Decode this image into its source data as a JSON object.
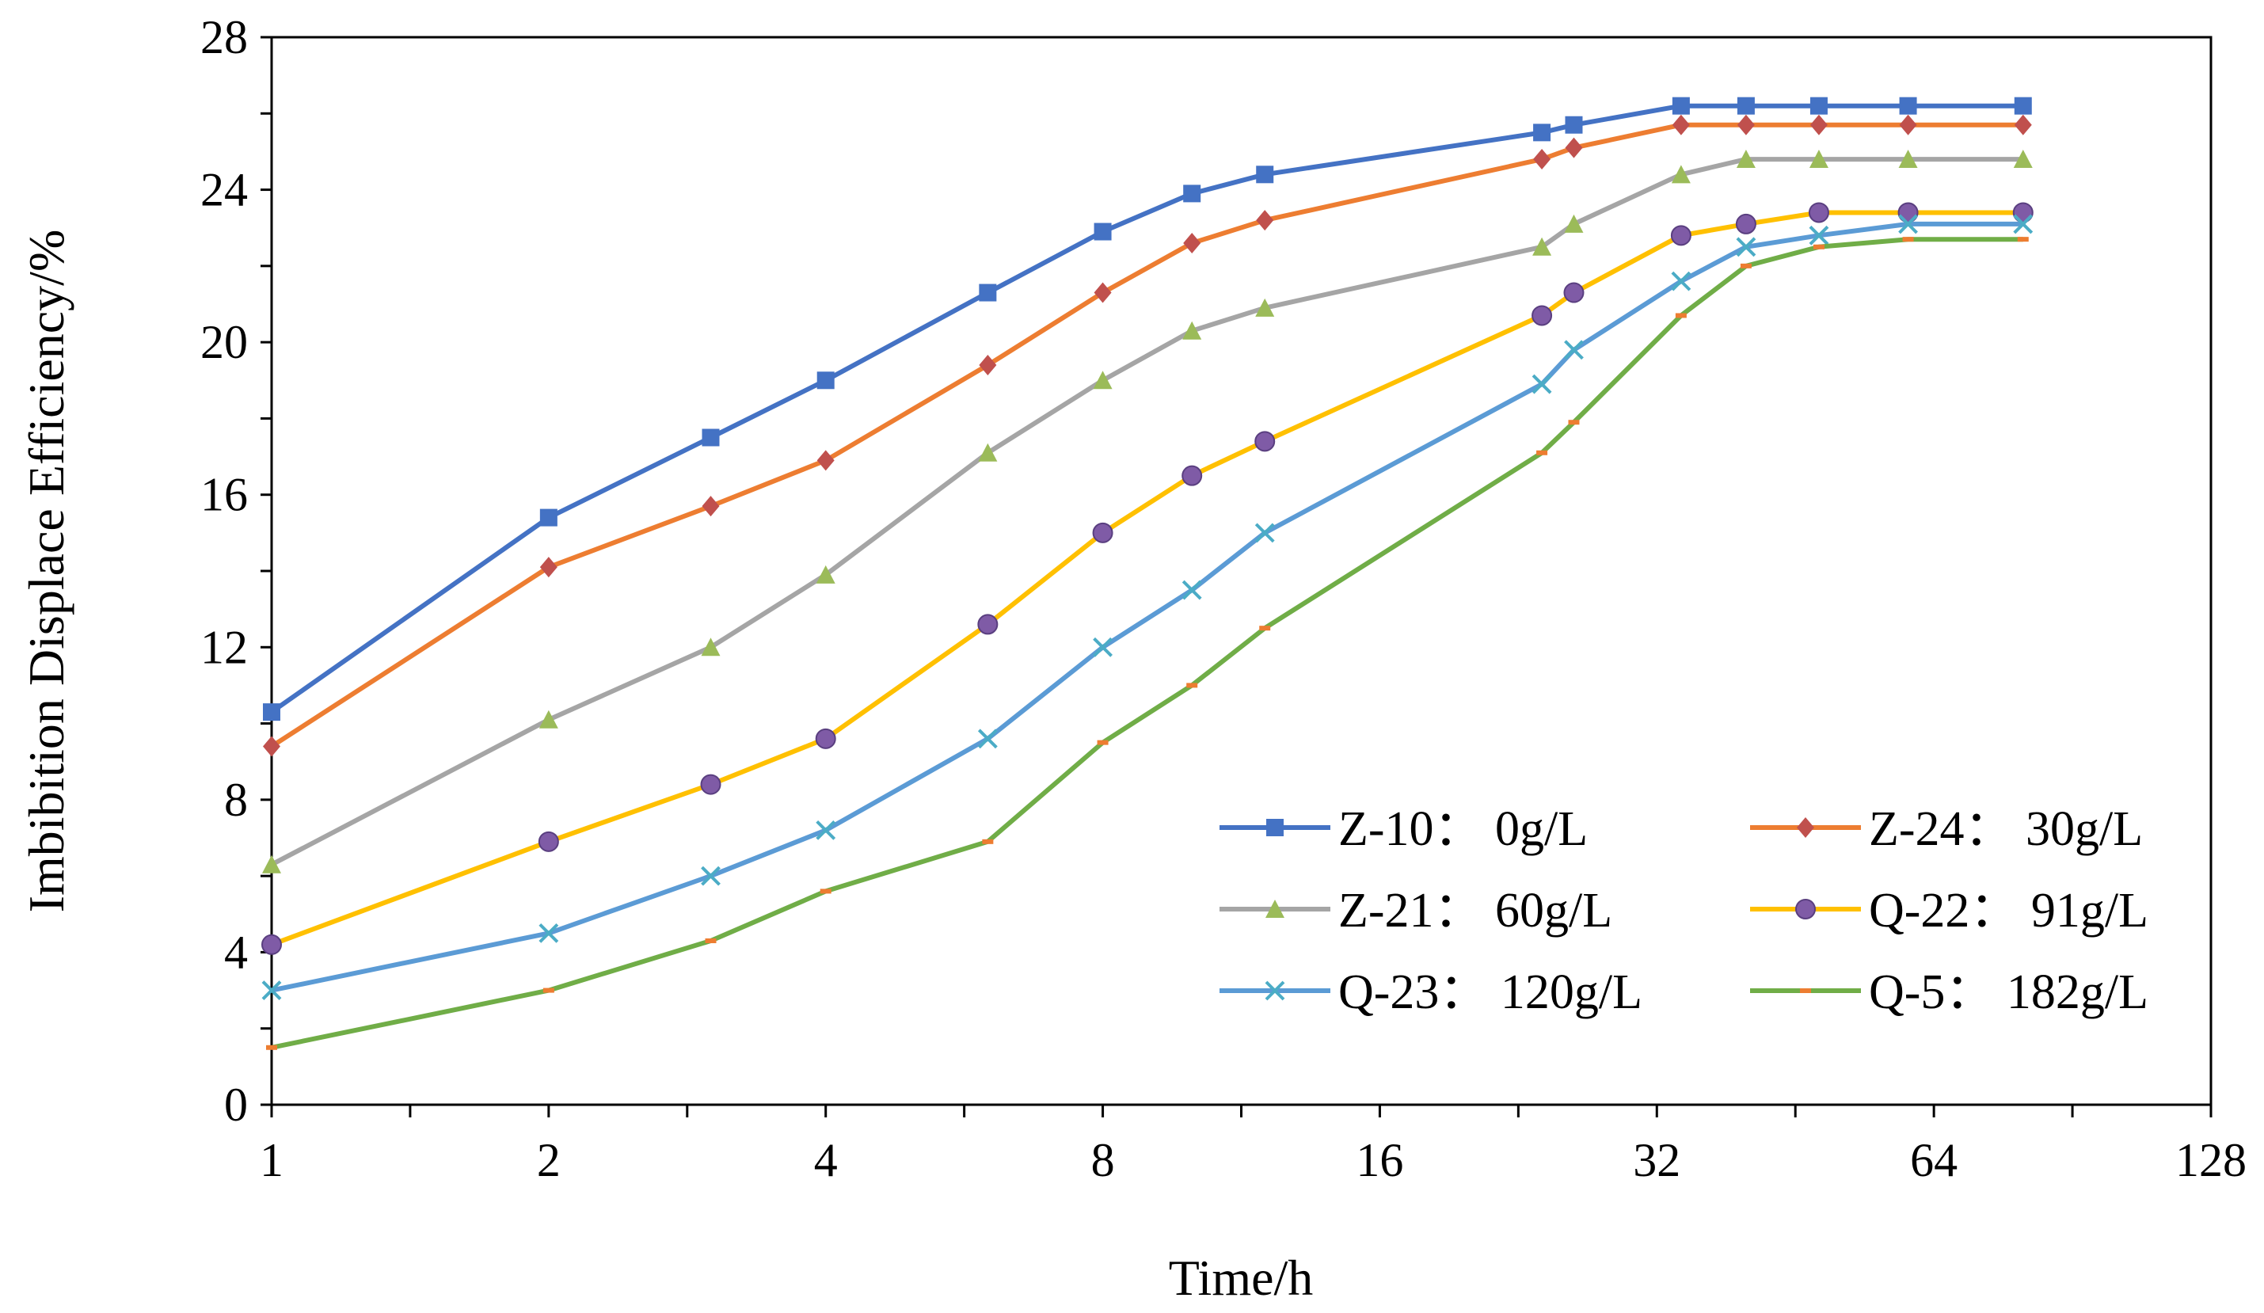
{
  "chart_data": {
    "type": "line",
    "xscale": "log2",
    "xlabel": "Time/h",
    "ylabel": "Imbibition Displace Efficiency/%",
    "xlim": [
      1,
      128
    ],
    "ylim": [
      0,
      28
    ],
    "xticks": [
      "1",
      "2",
      "4",
      "8",
      "16",
      "32",
      "64",
      "128"
    ],
    "xtick_values": [
      1,
      2,
      4,
      8,
      16,
      32,
      64,
      128
    ],
    "yticks": [
      "0",
      "4",
      "8",
      "12",
      "16",
      "20",
      "24",
      "28"
    ],
    "ytick_values": [
      0,
      4,
      8,
      12,
      16,
      20,
      24,
      28
    ],
    "grid": false,
    "legend_position": "lower-right",
    "series": [
      {
        "name": "Z-10： 0g/L",
        "color": "#4472C4",
        "marker": "square",
        "x": [
          1,
          2,
          3,
          4,
          6,
          8,
          10,
          12,
          24,
          26,
          34,
          40,
          48,
          60,
          80
        ],
        "y": [
          10.3,
          15.4,
          17.5,
          19.0,
          21.3,
          22.9,
          23.9,
          24.4,
          25.5,
          25.7,
          26.2,
          26.2,
          26.2,
          26.2,
          26.2
        ]
      },
      {
        "name": "Z-24： 30g/L",
        "color": "#ED7D31",
        "marker": "diamond",
        "x": [
          1,
          2,
          3,
          4,
          6,
          8,
          10,
          12,
          24,
          26,
          34,
          40,
          48,
          60,
          80
        ],
        "y": [
          9.4,
          14.1,
          15.7,
          16.9,
          19.4,
          21.3,
          22.6,
          23.2,
          24.8,
          25.1,
          25.7,
          25.7,
          25.7,
          25.7,
          25.7
        ]
      },
      {
        "name": "Z-21： 60g/L",
        "color": "#A5A5A5",
        "marker": "triangle",
        "x": [
          1,
          2,
          3,
          4,
          6,
          8,
          10,
          12,
          24,
          26,
          34,
          40,
          48,
          60,
          80
        ],
        "y": [
          6.3,
          10.1,
          12.0,
          13.9,
          17.1,
          19.0,
          20.3,
          20.9,
          22.5,
          23.1,
          24.4,
          24.8,
          24.8,
          24.8,
          24.8
        ]
      },
      {
        "name": "Q-22： 91g/L",
        "color": "#FFC000",
        "marker": "circle",
        "x": [
          1,
          2,
          3,
          4,
          6,
          8,
          10,
          12,
          24,
          26,
          34,
          40,
          48,
          60,
          80
        ],
        "y": [
          4.2,
          6.9,
          8.4,
          9.6,
          12.6,
          15.0,
          16.5,
          17.4,
          20.7,
          21.3,
          22.8,
          23.1,
          23.4,
          23.4,
          23.4
        ]
      },
      {
        "name": "Q-23： 120g/L",
        "color": "#5B9BD5",
        "marker": "x",
        "x": [
          1,
          2,
          3,
          4,
          6,
          8,
          10,
          12,
          24,
          26,
          34,
          40,
          48,
          60,
          80
        ],
        "y": [
          3.0,
          4.5,
          6.0,
          7.2,
          9.6,
          12.0,
          13.5,
          15.0,
          18.9,
          19.8,
          21.6,
          22.5,
          22.8,
          23.1,
          23.1
        ]
      },
      {
        "name": "Q-5： 182g/L",
        "color": "#70AD47",
        "marker": "dash",
        "marker_color": "#ED7D31",
        "x": [
          1,
          2,
          3,
          4,
          6,
          8,
          10,
          12,
          24,
          26,
          34,
          40,
          48,
          60,
          80
        ],
        "y": [
          1.5,
          3.0,
          4.3,
          5.6,
          6.9,
          9.5,
          11.0,
          12.5,
          17.1,
          17.9,
          20.7,
          22.0,
          22.5,
          22.7,
          22.7
        ]
      }
    ]
  }
}
